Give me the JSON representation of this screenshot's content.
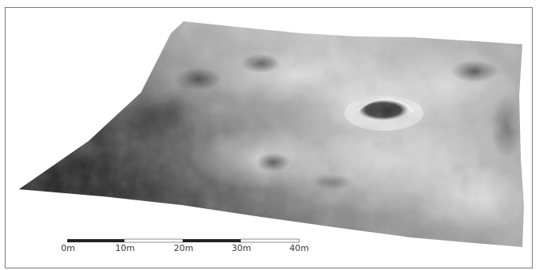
{
  "figure": {
    "scale_bar": {
      "unit": "m",
      "labels": [
        "0m",
        "10m",
        "20m",
        "30m",
        "40m"
      ],
      "segment_colors": [
        "#222222",
        "#ffffff",
        "#222222",
        "#ffffff"
      ]
    },
    "colors": {
      "frame": "#7a7a7a",
      "terrain_dark": "#1a1a1a",
      "terrain_light": "#f0f0f0"
    }
  }
}
